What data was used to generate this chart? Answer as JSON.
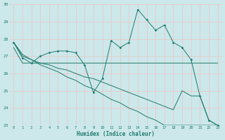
{
  "x": [
    0,
    1,
    2,
    3,
    4,
    5,
    6,
    7,
    8,
    9,
    10,
    11,
    12,
    13,
    14,
    15,
    16,
    17,
    18,
    19,
    20,
    21,
    22,
    23
  ],
  "curve1": [
    27.8,
    26.9,
    26.6,
    27.0,
    27.2,
    27.3,
    27.3,
    27.2,
    26.5,
    24.9,
    25.7,
    27.9,
    27.5,
    27.8,
    29.7,
    29.1,
    28.5,
    28.8,
    27.8,
    27.5,
    26.8,
    24.7,
    23.3,
    23.0
  ],
  "curve2": [
    27.5,
    26.6,
    26.6,
    26.6,
    26.6,
    26.6,
    26.6,
    26.6,
    26.6,
    26.6,
    26.6,
    26.6,
    26.6,
    26.6,
    26.6,
    26.6,
    26.6,
    26.6,
    26.6,
    26.6,
    26.6,
    26.6,
    26.6,
    26.6
  ],
  "curve3": [
    27.8,
    27.1,
    26.8,
    26.5,
    26.3,
    26.1,
    25.8,
    25.6,
    25.3,
    25.1,
    24.8,
    24.5,
    24.3,
    24.0,
    23.8,
    23.5,
    23.3,
    23.0,
    23.0,
    23.0,
    23.0,
    23.0,
    23.0,
    23.0
  ],
  "curve4": [
    27.8,
    27.0,
    26.8,
    26.6,
    26.5,
    26.3,
    26.2,
    26.0,
    25.8,
    25.7,
    25.5,
    25.3,
    25.1,
    24.9,
    24.7,
    24.5,
    24.3,
    24.1,
    23.9,
    25.0,
    24.7,
    24.7,
    23.3,
    23.0
  ],
  "ylim": [
    23,
    30
  ],
  "xlim": [
    -0.5,
    23.5
  ],
  "yticks": [
    23,
    24,
    25,
    26,
    27,
    28,
    29,
    30
  ],
  "xticks": [
    0,
    1,
    2,
    3,
    4,
    5,
    6,
    7,
    8,
    9,
    10,
    11,
    12,
    13,
    14,
    15,
    16,
    17,
    18,
    19,
    20,
    21,
    22,
    23
  ],
  "xlabel": "Humidex (Indice chaleur)",
  "line_color": "#1e7b6e",
  "bg_color": "#cce8ea",
  "grid_color": "#e8c8c8"
}
